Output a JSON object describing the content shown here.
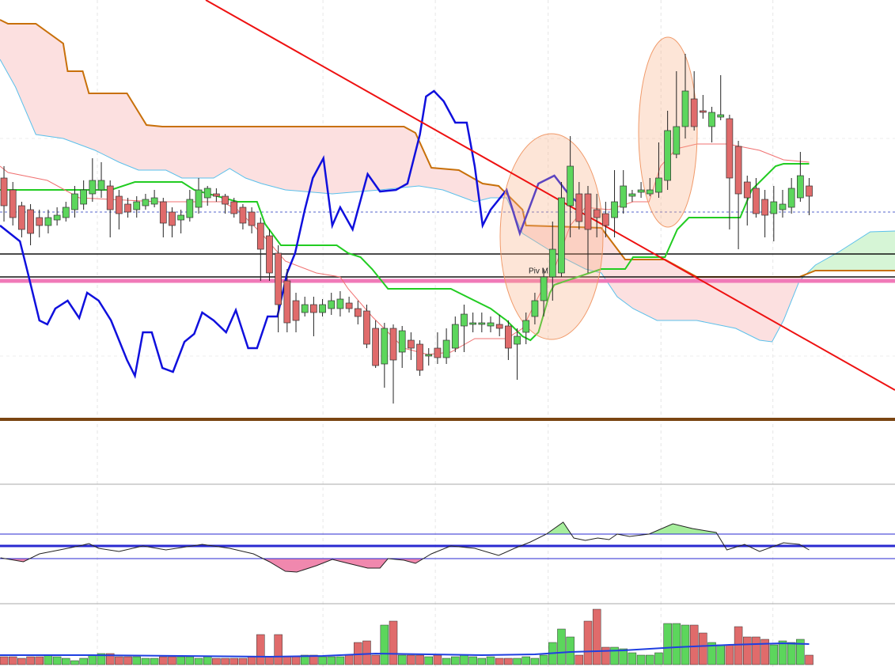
{
  "chart_data": [
    {
      "type": "candlestick",
      "xlim": [
        -0.45,
        100.7
      ],
      "ylim": [
        0,
        530
      ],
      "xticks": [
        10.55,
        36.05,
        48.75,
        61.5,
        74.25,
        86.9
      ],
      "yticks": [
        80,
        355
      ],
      "grid": true,
      "up_color": "#5cd65c",
      "down_color": "#e06b6b",
      "open": [
        305,
        290,
        270,
        265,
        255,
        245,
        252,
        255,
        265,
        272,
        285,
        290,
        295,
        282,
        272,
        265,
        270,
        272,
        275,
        262,
        252,
        255,
        268,
        280,
        285,
        282,
        275,
        268,
        262,
        248,
        232,
        210,
        175,
        150,
        135,
        145,
        135,
        140,
        140,
        147,
        140,
        137,
        115,
        70,
        115,
        85,
        100,
        95,
        80,
        90,
        78,
        90,
        118,
        120,
        120,
        118,
        120,
        118,
        95,
        110,
        130,
        150,
        180,
        185,
        270,
        285,
        285,
        265,
        260,
        255,
        268,
        282,
        287,
        285,
        287,
        302,
        335,
        370,
        405,
        390,
        370,
        382,
        380,
        345,
        300,
        292,
        278,
        260,
        265,
        268,
        280,
        295
      ],
      "high": [
        320,
        300,
        275,
        272,
        265,
        265,
        268,
        275,
        295,
        302,
        330,
        325,
        302,
        290,
        280,
        282,
        285,
        290,
        280,
        268,
        265,
        290,
        305,
        295,
        292,
        285,
        280,
        272,
        268,
        255,
        240,
        220,
        190,
        160,
        155,
        155,
        152,
        160,
        162,
        155,
        150,
        145,
        125,
        122,
        120,
        118,
        110,
        100,
        90,
        110,
        115,
        130,
        145,
        135,
        135,
        130,
        132,
        125,
        115,
        135,
        160,
        190,
        250,
        300,
        358,
        300,
        295,
        285,
        275,
        315,
        315,
        290,
        300,
        305,
        350,
        390,
        440,
        462,
        440,
        410,
        395,
        435,
        385,
        352,
        308,
        305,
        290,
        295,
        290,
        305,
        338,
        305
      ],
      "low": [
        250,
        245,
        230,
        220,
        230,
        235,
        245,
        250,
        255,
        265,
        275,
        280,
        230,
        240,
        255,
        255,
        265,
        268,
        230,
        230,
        235,
        250,
        260,
        270,
        275,
        260,
        255,
        240,
        235,
        175,
        175,
        110,
        110,
        110,
        130,
        105,
        130,
        132,
        130,
        135,
        120,
        90,
        65,
        40,
        20,
        65,
        75,
        55,
        68,
        70,
        70,
        85,
        85,
        110,
        110,
        110,
        105,
        75,
        50,
        95,
        120,
        130,
        150,
        180,
        230,
        240,
        185,
        230,
        230,
        230,
        260,
        275,
        280,
        282,
        280,
        290,
        330,
        355,
        365,
        380,
        350,
        378,
        240,
        215,
        245,
        255,
        230,
        225,
        255,
        260,
        275,
        258
      ],
      "close": [
        270,
        255,
        240,
        235,
        245,
        255,
        258,
        268,
        285,
        290,
        302,
        302,
        265,
        260,
        262,
        275,
        278,
        280,
        248,
        245,
        258,
        278,
        290,
        292,
        282,
        272,
        260,
        248,
        245,
        215,
        185,
        145,
        122,
        125,
        145,
        135,
        145,
        150,
        152,
        140,
        130,
        95,
        68,
        115,
        75,
        112,
        90,
        62,
        82,
        78,
        100,
        120,
        133,
        122,
        122,
        122,
        115,
        90,
        105,
        125,
        150,
        180,
        215,
        280,
        320,
        250,
        240,
        255,
        245,
        275,
        295,
        285,
        290,
        290,
        305,
        365,
        370,
        415,
        370,
        388,
        388,
        385,
        305,
        285,
        280,
        260,
        258,
        275,
        272,
        292,
        308,
        282
      ],
      "span_a": {
        "color": "#5bc0eb",
        "x": [
          -0.45,
          1.3,
          3.6,
          6.7,
          10.3,
          13,
          15.2,
          18.3,
          20.1,
          23.7,
          25.5,
          27.3,
          29.1,
          31.8,
          37.1,
          42.5,
          46.9,
          49.6,
          53.2,
          55,
          56.8,
          58.6,
          62.2,
          65.7,
          67.5,
          69.3,
          71.1,
          73.8,
          78.3,
          82.7,
          85.4,
          86.8,
          88.1,
          89.9,
          91.7,
          94.4,
          97.9,
          100.7
        ],
        "values": [
          455,
          420,
          360,
          355,
          340,
          325,
          315,
          315,
          305,
          305,
          317,
          305,
          298,
          290,
          285,
          290,
          295,
          290,
          275,
          280,
          280,
          235,
          210,
          190,
          185,
          155,
          140,
          125,
          125,
          115,
          100,
          98,
          125,
          175,
          195,
          212,
          237,
          238
        ]
      },
      "span_b": {
        "color": "#c8700a",
        "x": [
          -0.45,
          0.45,
          3.6,
          6.7,
          7.2,
          8.9,
          9.6,
          13.9,
          16.1,
          17.9,
          45.2,
          46.5,
          48.3,
          51.4,
          54.1,
          55.9,
          58.6,
          59,
          67.5,
          70.2,
          74.7,
          78.3,
          89.9,
          91.7,
          100.7
        ],
        "values": [
          505,
          500,
          500,
          475,
          440,
          440,
          412,
          412,
          372,
          370,
          370,
          362,
          318,
          315,
          298,
          295,
          265,
          245,
          242,
          202,
          202,
          180,
          180,
          188,
          188
        ]
      },
      "cloud_colors": [
        "#fce0e0",
        "#d6f5d6"
      ],
      "lines": [
        {
          "color": "#22cc22",
          "width": 2,
          "x": [
            -0.45,
            12.1,
            14.8,
            20.1,
            21.5,
            26.4,
            28.6,
            29.5,
            31.3,
            37.6,
            38.9,
            40.3,
            41.6,
            43.4,
            50.5,
            55,
            56.8,
            58.6,
            59.5,
            60.4,
            61.7,
            62.2,
            67.5,
            70.2,
            71.1,
            74.7,
            76.1,
            77.4,
            83.2,
            84.5,
            87.2,
            88.1,
            91
          ],
          "values": [
            290,
            290,
            300,
            300,
            290,
            275,
            275,
            247,
            220,
            220,
            210,
            205,
            190,
            165,
            165,
            140,
            125,
            105,
            100,
            110,
            160,
            170,
            190,
            190,
            205,
            205,
            240,
            255,
            255,
            290,
            320,
            323,
            323
          ]
        },
        {
          "color": "#f07070",
          "width": 1,
          "x": [
            -0.45,
            0.45,
            4.9,
            8.5,
            17.4,
            24.6,
            26.4,
            29.1,
            31.8,
            35.3,
            38,
            38.9,
            41.6,
            43.4,
            45.2,
            47.9,
            50.5,
            53.2,
            56.8,
            58.6,
            59.5,
            61.3,
            62.2,
            64,
            65.7,
            68.4,
            71.1,
            72.9,
            74.2,
            76,
            78.3,
            81.8,
            85.4,
            88.1,
            91
          ],
          "values": [
            320,
            312,
            302,
            280,
            275,
            275,
            265,
            235,
            200,
            185,
            180,
            165,
            130,
            110,
            90,
            82,
            85,
            102,
            102,
            115,
            135,
            175,
            190,
            245,
            268,
            265,
            275,
            275,
            320,
            342,
            348,
            348,
            340,
            328,
            325
          ]
        },
        {
          "color": "#1010dd",
          "width": 2.5,
          "x": [
            -0.45,
            1.8,
            2.7,
            4,
            4.9,
            5.8,
            7.2,
            8.5,
            9.4,
            10.7,
            12.1,
            13.9,
            14.8,
            15.7,
            16.7,
            17.9,
            19.1,
            20.4,
            21.5,
            22.4,
            23.7,
            25.1,
            26.2,
            27.6,
            28.6,
            29.8,
            30.9,
            32,
            32.9,
            34,
            34.9,
            36.1,
            37.1,
            38,
            39.4,
            41.1,
            42.5,
            44.3,
            45.6,
            47,
            47.7,
            48.6,
            49.7,
            51,
            52.3,
            53.2,
            54.1,
            55,
            56.8,
            58.3,
            60.4,
            62.2,
            64,
            65.3
          ],
          "values": [
            245,
            225,
            185,
            125,
            120,
            140,
            150,
            128,
            160,
            150,
            125,
            75,
            55,
            110,
            110,
            65,
            60,
            98,
            108,
            135,
            125,
            110,
            138,
            90,
            90,
            130,
            130,
            185,
            210,
            265,
            305,
            330,
            245,
            268,
            240,
            310,
            288,
            290,
            298,
            360,
            408,
            415,
            402,
            375,
            375,
            320,
            245,
            265,
            290,
            235,
            298,
            308,
            282,
            270
          ]
        }
      ],
      "trendline": {
        "color": "#ee1111",
        "x": [
          22.8,
          100.7
        ],
        "values": [
          530,
          37
        ]
      },
      "levels": [
        {
          "value": 209,
          "color": "#111111",
          "width": 1.5
        },
        {
          "value": 180,
          "color": "#111111",
          "width": 1.5,
          "label": "Piv M"
        },
        {
          "value": 175,
          "color": "#f07ab8",
          "width": 5
        },
        {
          "value": 262,
          "color": "#5566cc",
          "width": 1,
          "dashed": true
        }
      ]
    },
    {
      "type": "line",
      "xlim": [
        -0.45,
        100.7
      ],
      "ylim": [
        0,
        148
      ],
      "color": "#222222",
      "x": [
        -0.4,
        2.2,
        4,
        6.3,
        8.5,
        9.6,
        10.7,
        13,
        15.7,
        18.3,
        22.4,
        25.5,
        28.2,
        30,
        31.8,
        33.1,
        35.3,
        37.1,
        38.9,
        41.1,
        42.5,
        43.4,
        45.2,
        46.5,
        48.3,
        50.5,
        53.2,
        55.9,
        57.7,
        59.5,
        61.3,
        63.2,
        64.4,
        65.7,
        67.1,
        68.4,
        69.3,
        70.7,
        72.9,
        75.6,
        77.8,
        80.5,
        81.7,
        83.7,
        85.4,
        88.1,
        89.9,
        91
      ],
      "values": [
        55,
        50,
        60,
        65,
        70,
        73,
        67,
        63,
        70,
        65,
        72,
        67,
        60,
        50,
        38,
        37,
        45,
        53,
        48,
        42,
        42,
        54,
        52,
        48,
        60,
        70,
        67,
        58,
        67,
        75,
        85,
        100,
        80,
        77,
        80,
        78,
        85,
        82,
        85,
        98,
        92,
        87,
        65,
        72,
        63,
        74,
        72,
        65
      ],
      "levels": [
        85,
        70,
        54
      ],
      "level_color": "#2a2ad0",
      "level_widths": [
        1,
        3,
        1
      ],
      "fill_colors": [
        "#a6ee9c",
        "#f088ae"
      ]
    },
    {
      "type": "bar",
      "xlim": [
        -0.45,
        100.7
      ],
      "ylim": [
        0,
        75
      ],
      "values": [
        10,
        10,
        8,
        10,
        10,
        12,
        10,
        8,
        5,
        8,
        12,
        14,
        14,
        10,
        10,
        10,
        8,
        8,
        10,
        10,
        10,
        10,
        8,
        10,
        8,
        8,
        8,
        8,
        10,
        38,
        10,
        38,
        10,
        10,
        12,
        12,
        10,
        10,
        10,
        12,
        28,
        30,
        12,
        50,
        55,
        12,
        12,
        12,
        10,
        12,
        8,
        10,
        12,
        10,
        8,
        10,
        8,
        8,
        8,
        10,
        8,
        12,
        28,
        45,
        35,
        12,
        55,
        70,
        22,
        22,
        20,
        15,
        12,
        12,
        15,
        52,
        52,
        50,
        50,
        40,
        28,
        25,
        25,
        48,
        35,
        35,
        32,
        25,
        30,
        28,
        32,
        12
      ],
      "ma": {
        "color": "#1f3fe0",
        "x": [
          -0.45,
          10,
          20,
          30,
          36,
          42,
          48,
          54,
          60,
          64,
          70,
          76,
          82,
          88,
          91
        ],
        "values": [
          12,
          12,
          11,
          10,
          11,
          14,
          13,
          12,
          13,
          16,
          18,
          22,
          25,
          27,
          26
        ]
      }
    }
  ]
}
